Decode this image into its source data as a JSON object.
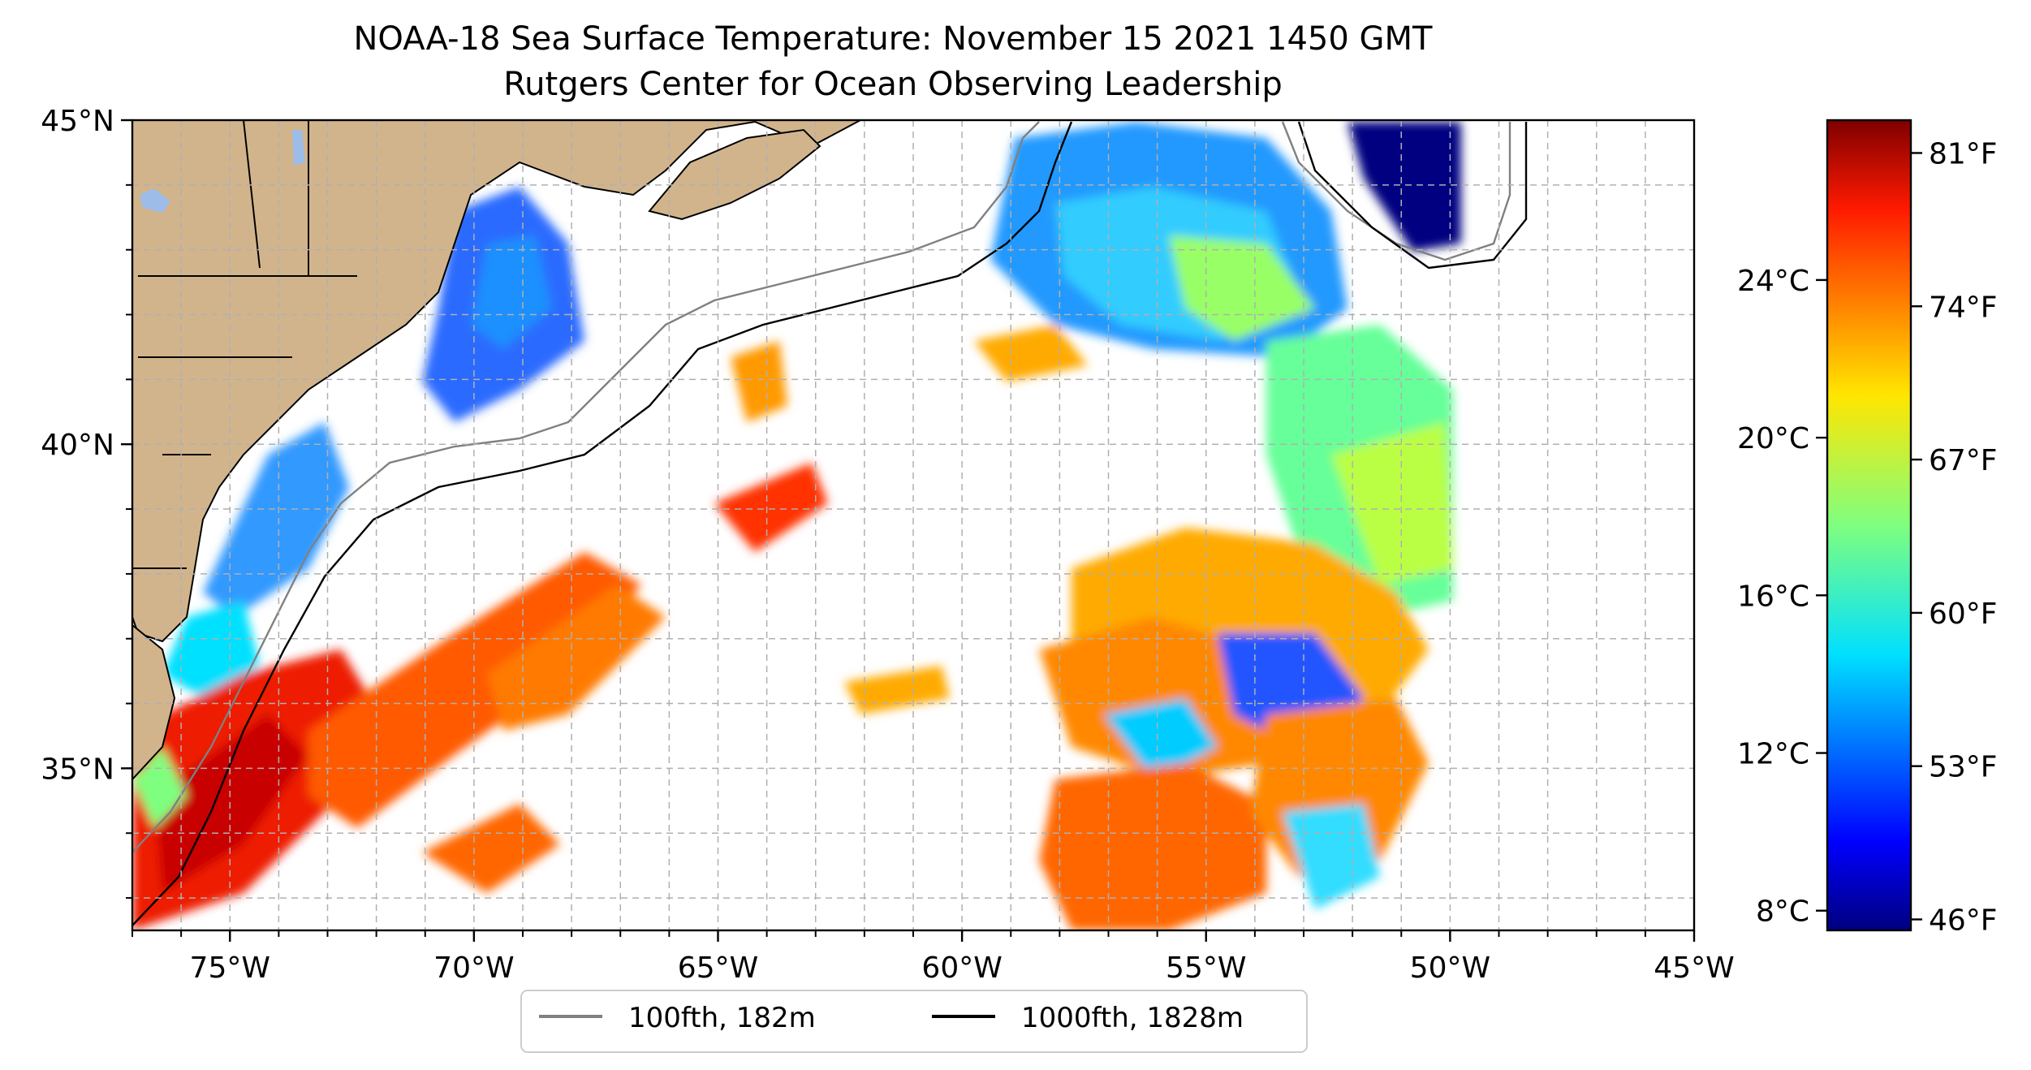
{
  "title": {
    "line1": "NOAA-18 Sea Surface Temperature: November 15 2021 1450 GMT",
    "line2": "Rutgers Center for Ocean Observing Leadership"
  },
  "map": {
    "lon_range": [
      -77,
      -45
    ],
    "lat_range": [
      32.5,
      45
    ],
    "lon_ticks": [
      {
        "value": -75,
        "label": "75°W"
      },
      {
        "value": -70,
        "label": "70°W"
      },
      {
        "value": -65,
        "label": "65°W"
      },
      {
        "value": -60,
        "label": "60°W"
      },
      {
        "value": -55,
        "label": "55°W"
      },
      {
        "value": -50,
        "label": "50°W"
      },
      {
        "value": -45,
        "label": "45°W"
      }
    ],
    "lat_ticks": [
      {
        "value": 35,
        "label": "35°N"
      },
      {
        "value": 40,
        "label": "40°N"
      },
      {
        "value": 45,
        "label": "45°N"
      }
    ],
    "gridlines": "dashed",
    "land_color": "#d2b48c",
    "lake_color": "#9dbce8"
  },
  "legend": {
    "placement": "bottom-center",
    "items": [
      {
        "label": "100fth, 182m",
        "color": "#808080"
      },
      {
        "label": "1000fth, 1828m",
        "color": "#000000"
      }
    ]
  },
  "colorbar": {
    "colormap": "jet",
    "range_f": [
      45.5,
      82.5
    ],
    "celsius_ticks": [
      {
        "value": 8,
        "label": "8°C"
      },
      {
        "value": 12,
        "label": "12°C"
      },
      {
        "value": 16,
        "label": "16°C"
      },
      {
        "value": 20,
        "label": "20°C"
      },
      {
        "value": 24,
        "label": "24°C"
      }
    ],
    "fahrenheit_ticks": [
      {
        "value": 46,
        "label": "46°F"
      },
      {
        "value": 53,
        "label": "53°F"
      },
      {
        "value": 60,
        "label": "60°F"
      },
      {
        "value": 67,
        "label": "67°F"
      },
      {
        "value": 74,
        "label": "74°F"
      },
      {
        "value": 81,
        "label": "81°F"
      }
    ]
  }
}
